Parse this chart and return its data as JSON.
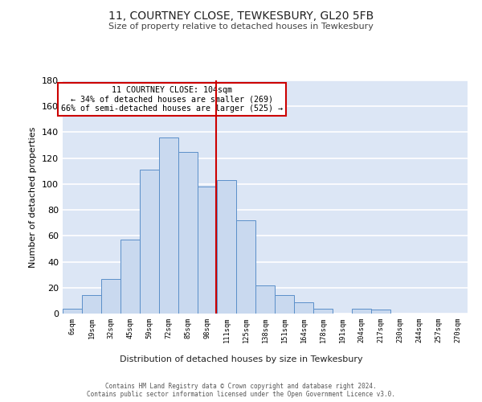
{
  "title1": "11, COURTNEY CLOSE, TEWKESBURY, GL20 5FB",
  "title2": "Size of property relative to detached houses in Tewkesbury",
  "xlabel": "Distribution of detached houses by size in Tewkesbury",
  "ylabel": "Number of detached properties",
  "bin_labels": [
    "6sqm",
    "19sqm",
    "32sqm",
    "45sqm",
    "59sqm",
    "72sqm",
    "85sqm",
    "98sqm",
    "111sqm",
    "125sqm",
    "138sqm",
    "151sqm",
    "164sqm",
    "178sqm",
    "191sqm",
    "204sqm",
    "217sqm",
    "230sqm",
    "244sqm",
    "257sqm",
    "270sqm"
  ],
  "bar_heights": [
    4,
    14,
    27,
    57,
    111,
    136,
    125,
    98,
    103,
    72,
    22,
    14,
    9,
    4,
    0,
    4,
    3,
    0,
    0,
    0,
    0
  ],
  "bar_color": "#c9d9ef",
  "bar_edge_color": "#5b8fc9",
  "background_color": "#dce6f5",
  "grid_color": "#ffffff",
  "vline_color": "#cc0000",
  "annotation_text": "11 COURTNEY CLOSE: 104sqm\n← 34% of detached houses are smaller (269)\n66% of semi-detached houses are larger (525) →",
  "annotation_box_color": "#ffffff",
  "annotation_box_edge_color": "#cc0000",
  "footer_text": "Contains HM Land Registry data © Crown copyright and database right 2024.\nContains public sector information licensed under the Open Government Licence v3.0.",
  "ylim": [
    0,
    180
  ],
  "yticks": [
    0,
    20,
    40,
    60,
    80,
    100,
    120,
    140,
    160,
    180
  ]
}
